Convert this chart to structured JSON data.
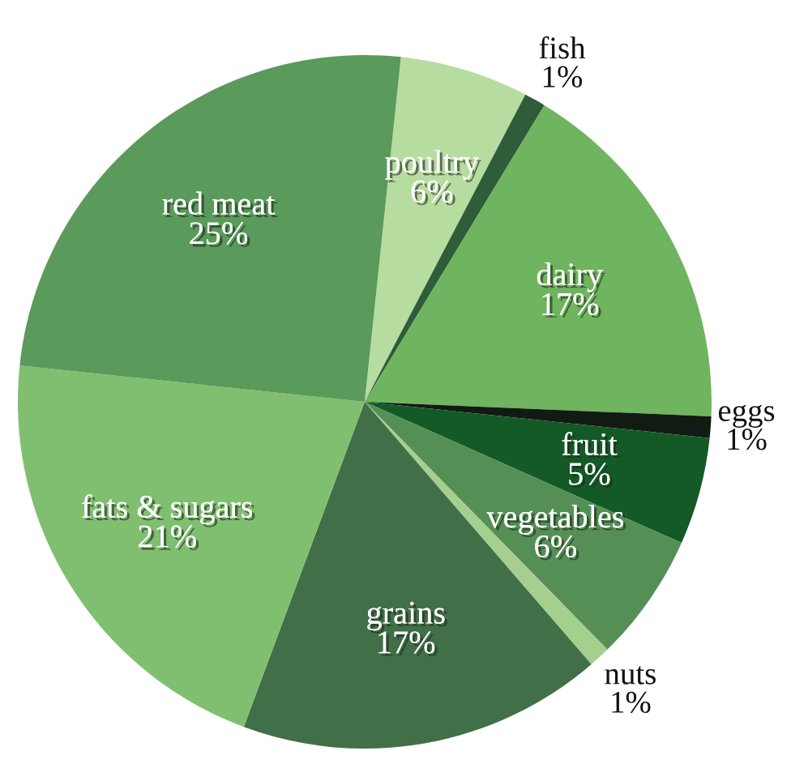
{
  "chart_data": {
    "type": "pie",
    "categories": [
      "poultry",
      "fish",
      "dairy",
      "eggs",
      "fruit",
      "vegetables",
      "nuts",
      "grains",
      "fats & sugars",
      "red meat"
    ],
    "values": [
      6,
      1,
      17,
      1,
      5,
      6,
      1,
      17,
      21,
      25
    ],
    "value_labels": [
      "6%",
      "1%",
      "17%",
      "1%",
      "5%",
      "6%",
      "1%",
      "17%",
      "21%",
      "25%"
    ],
    "colors": [
      "#b7dca0",
      "#2f5d3a",
      "#6fb45e",
      "#121a14",
      "#135a27",
      "#558f56",
      "#a5cf8e",
      "#416f48",
      "#80bf70",
      "#5a9a5a"
    ]
  }
}
